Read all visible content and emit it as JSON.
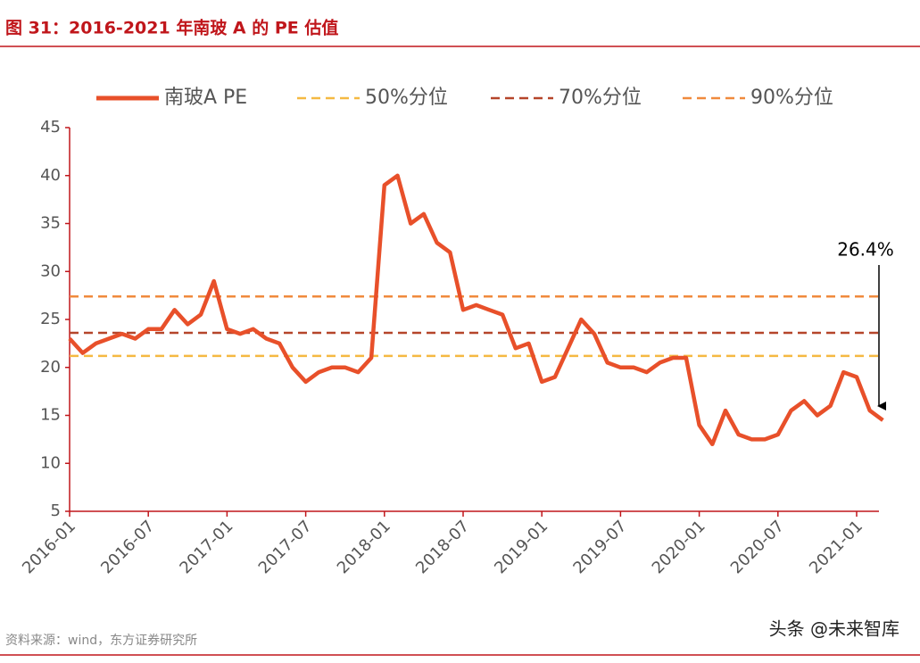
{
  "chart_data": {
    "type": "line",
    "title": "图 31：2016-2021 年南玻 A 的 PE 估值",
    "source": "资料来源：wind，东方证券研究所",
    "watermark": "头条 @未来智库",
    "annotation": "26.4%",
    "x": [
      "2016-01",
      "2016-02",
      "2016-03",
      "2016-04",
      "2016-05",
      "2016-06",
      "2016-07",
      "2016-08",
      "2016-09",
      "2016-10",
      "2016-11",
      "2016-12",
      "2017-01",
      "2017-02",
      "2017-03",
      "2017-04",
      "2017-05",
      "2017-06",
      "2017-07",
      "2017-08",
      "2017-09",
      "2017-10",
      "2017-11",
      "2017-12",
      "2018-01",
      "2018-02",
      "2018-03",
      "2018-04",
      "2018-05",
      "2018-06",
      "2018-07",
      "2018-08",
      "2018-09",
      "2018-10",
      "2018-11",
      "2018-12",
      "2019-01",
      "2019-02",
      "2019-03",
      "2019-04",
      "2019-05",
      "2019-06",
      "2019-07",
      "2019-08",
      "2019-09",
      "2019-10",
      "2019-11",
      "2019-12",
      "2020-01",
      "2020-02",
      "2020-03",
      "2020-04",
      "2020-05",
      "2020-06",
      "2020-07",
      "2020-08",
      "2020-09",
      "2020-10",
      "2020-11",
      "2020-12",
      "2021-01",
      "2021-02",
      "2021-03"
    ],
    "xticks": [
      "2016-01",
      "2016-07",
      "2017-01",
      "2017-07",
      "2018-01",
      "2018-07",
      "2019-01",
      "2019-07",
      "2020-01",
      "2020-07",
      "2021-01"
    ],
    "series": [
      {
        "name": "南玻A PE",
        "color": "#e8502a",
        "values": [
          23,
          21.5,
          22.5,
          23,
          23.5,
          23,
          24,
          24,
          26,
          24.5,
          25.5,
          29,
          24,
          23.5,
          24,
          23,
          22.5,
          20,
          18.5,
          19.5,
          20,
          20,
          19.5,
          21,
          39,
          40,
          35,
          36,
          33,
          32,
          26,
          26.5,
          26,
          25.5,
          22,
          22.5,
          18.5,
          19,
          22,
          25,
          23.5,
          20.5,
          20,
          20,
          19.5,
          20.5,
          21,
          21,
          14,
          12,
          15.5,
          13,
          12.5,
          12.5,
          13,
          15.5,
          16.5,
          15,
          16,
          19.5,
          19,
          15.5,
          14.5
        ]
      }
    ],
    "reference_lines": [
      {
        "name": "50%分位",
        "value": 21.2,
        "color": "#f5b942"
      },
      {
        "name": "70%分位",
        "value": 23.6,
        "color": "#b5452a"
      },
      {
        "name": "90%分位",
        "value": 27.4,
        "color": "#f08a3c"
      }
    ],
    "ylim": [
      5,
      45
    ],
    "yticks": [
      5,
      10,
      15,
      20,
      25,
      30,
      35,
      40,
      45
    ]
  }
}
